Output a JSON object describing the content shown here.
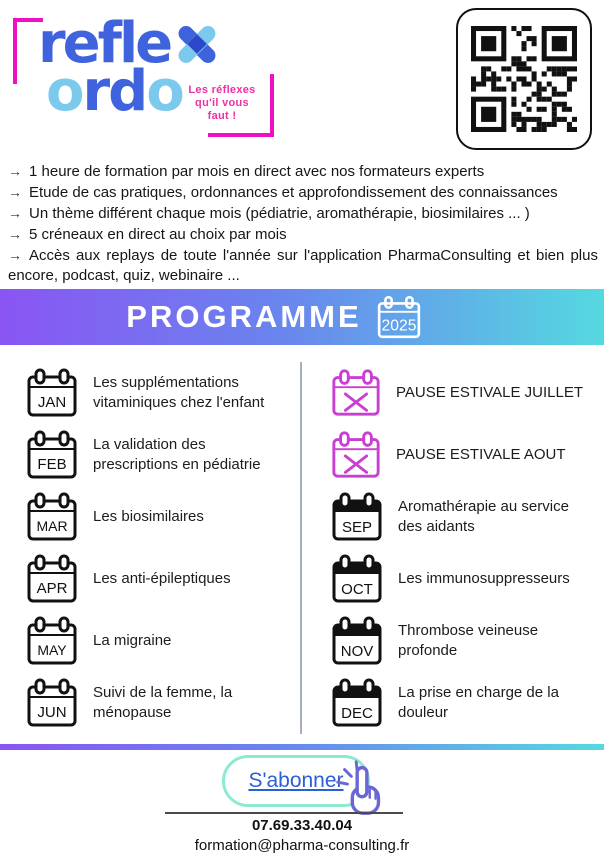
{
  "logo": {
    "word_top": "refle",
    "word_bottom_letters": [
      "o",
      "r",
      "d",
      "o"
    ],
    "tagline_lines": [
      "Les réflexes",
      "qu'il vous",
      "faut !"
    ]
  },
  "bullets": {
    "arrow": "→",
    "items": [
      "1 heure de formation par mois en direct avec nos formateurs experts",
      "Etude de cas pratiques, ordonnances et approfondissement des connaissances",
      "Un thème différent chaque mois (pédiatrie, aromathérapie, biosimilaires ... )",
      "5 créneaux en direct au choix par mois",
      "Accès aux replays de toute l'année sur l'application PharmaConsulting et bien plus encore, podcast, quiz, webinaire ..."
    ]
  },
  "banner": {
    "title": "PROGRAMME",
    "year": "2025"
  },
  "program": {
    "left": [
      {
        "month": "JAN",
        "title": "Les supplémentations vitaminiques chez l'enfant"
      },
      {
        "month": "FEB",
        "title": "La validation des prescriptions en pédiatrie"
      },
      {
        "month": "MAR",
        "title": "Les biosimilaires"
      },
      {
        "month": "APR",
        "title": "Les anti-épileptiques"
      },
      {
        "month": "MAY",
        "title": "La migraine"
      },
      {
        "month": "JUN",
        "title": "Suivi de la femme, la ménopause"
      }
    ],
    "right": [
      {
        "month": "",
        "title": "PAUSE ESTIVALE JUILLET",
        "pause": true
      },
      {
        "month": "",
        "title": "PAUSE ESTIVALE AOUT",
        "pause": true
      },
      {
        "month": "SEP",
        "title": "Aromathérapie au service des aidants"
      },
      {
        "month": "OCT",
        "title": "Les immunosuppresseurs"
      },
      {
        "month": "NOV",
        "title": "Thrombose veineuse profonde"
      },
      {
        "month": "DEC",
        "title": "La prise en charge de la douleur"
      }
    ]
  },
  "subscribe": {
    "label": "S'abonner"
  },
  "footer": {
    "phone": "07.69.33.40.04",
    "email": "formation@pharma-consulting.fr"
  },
  "colors": {
    "magenta_bracket": "#f10fc5",
    "tagline_pink": "#ee2fa4",
    "logo_royal_blue": "#3f62dd",
    "logo_light_blue": "#7cc9ee",
    "banner_gradient_left": "#8a55f3",
    "banner_gradient_right": "#55d9e0",
    "pause_calendar_pink": "#c93fd1",
    "subscribe_border_mint": "#8bead1",
    "subscribe_text_blue": "#2b5ed7",
    "hand_purple": "#6b66d6"
  }
}
